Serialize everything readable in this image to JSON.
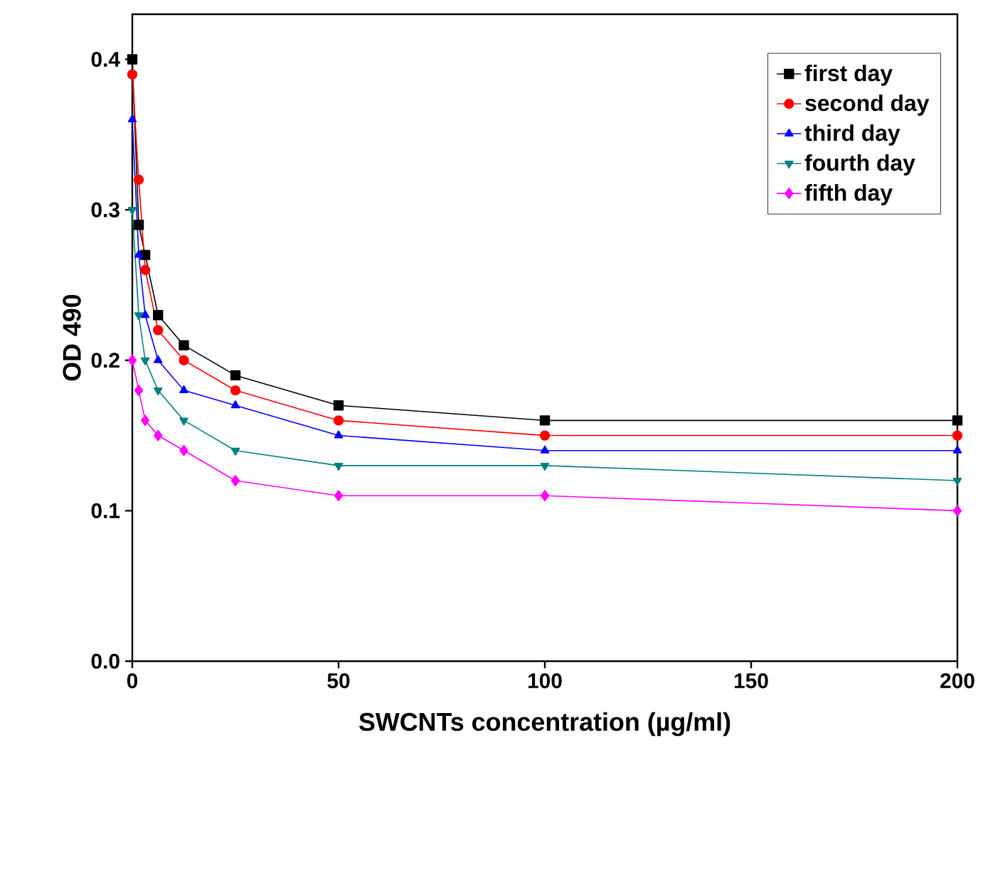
{
  "chart_data": {
    "type": "line",
    "xlabel": "SWCNTs concentration (µg/ml)",
    "ylabel": "OD 490",
    "x": [
      0,
      1.5625,
      3.125,
      6.25,
      12.5,
      25,
      50,
      100,
      200
    ],
    "xlim": [
      0,
      200
    ],
    "xticks": [
      0,
      50,
      100,
      150,
      200
    ],
    "ylim": [
      0,
      0.43
    ],
    "yticks": [
      {
        "value": 0,
        "label": "0.0"
      },
      0.1,
      0.2,
      0.3,
      0.4
    ],
    "legend": "top right",
    "grid": false,
    "line_style": "solid",
    "series": [
      {
        "name": "first day",
        "color": "#000000",
        "marker": "square",
        "values": [
          0.4,
          0.29,
          0.27,
          0.23,
          0.21,
          0.19,
          0.17,
          0.16,
          0.16
        ]
      },
      {
        "name": "second day",
        "color": "#ff0000",
        "marker": "circle",
        "values": [
          0.39,
          0.32,
          0.26,
          0.22,
          0.2,
          0.18,
          0.16,
          0.15,
          0.15
        ]
      },
      {
        "name": "third day",
        "color": "#0000ff",
        "marker": "triangle",
        "values": [
          0.36,
          0.27,
          0.23,
          0.2,
          0.18,
          0.17,
          0.15,
          0.14,
          0.14
        ]
      },
      {
        "name": "fourth day",
        "color": "#008080",
        "marker": "triangle down",
        "values": [
          0.3,
          0.23,
          0.2,
          0.18,
          0.16,
          0.14,
          0.13,
          0.13,
          0.12
        ]
      },
      {
        "name": "fifth day",
        "color": "#ff00ff",
        "marker": "diamond",
        "values": [
          0.2,
          0.18,
          0.16,
          0.15,
          0.14,
          0.12,
          0.11,
          0.11,
          0.1
        ]
      }
    ]
  }
}
